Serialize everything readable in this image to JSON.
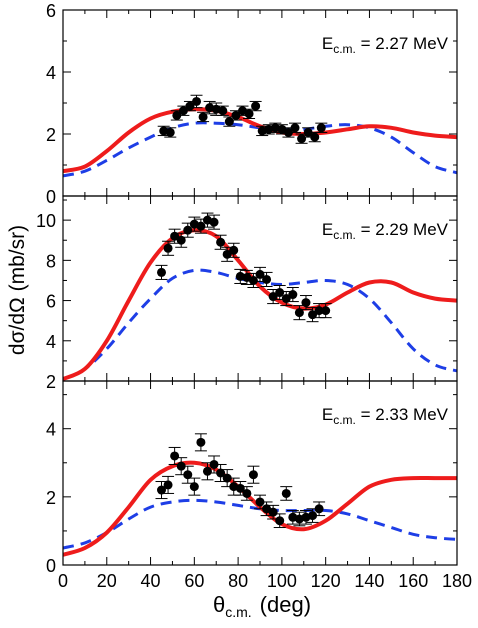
{
  "chart_data": {
    "type": "scatter",
    "x_axis": {
      "label_main": "θ",
      "label_sub": "c.m.",
      "label_unit": "(deg)",
      "range": [
        0,
        180
      ],
      "ticks": [
        "0",
        "20",
        "40",
        "60",
        "80",
        "100",
        "120",
        "140",
        "160",
        "180"
      ]
    },
    "y_axis_label": "dσ/dΩ (mb/sr)",
    "colors": {
      "fit_solid": "#ee1c1c",
      "fit_dashed": "#1e3ee6",
      "data": "#000000"
    },
    "panels": [
      {
        "annotation": {
          "main": "E",
          "sub": "c.m.",
          "rest": " = 2.27 MeV"
        },
        "ylim": [
          0,
          6
        ],
        "yticks": [
          "0",
          "2",
          "4",
          "6"
        ],
        "data": [
          [
            46,
            2.1,
            0.15
          ],
          [
            49,
            2.05,
            0.15
          ],
          [
            52,
            2.6,
            0.15
          ],
          [
            55,
            2.75,
            0.15
          ],
          [
            58,
            2.9,
            0.15
          ],
          [
            61,
            3.05,
            0.2
          ],
          [
            64,
            2.55,
            0.15
          ],
          [
            67,
            2.85,
            0.2
          ],
          [
            70,
            2.8,
            0.2
          ],
          [
            73,
            2.75,
            0.15
          ],
          [
            76,
            2.4,
            0.15
          ],
          [
            79,
            2.6,
            0.15
          ],
          [
            82,
            2.75,
            0.15
          ],
          [
            85,
            2.65,
            0.15
          ],
          [
            88,
            2.9,
            0.15
          ],
          [
            91,
            2.1,
            0.15
          ],
          [
            94,
            2.15,
            0.15
          ],
          [
            97,
            2.2,
            0.15
          ],
          [
            100,
            2.15,
            0.15
          ],
          [
            103,
            2.05,
            0.15
          ],
          [
            106,
            2.2,
            0.15
          ],
          [
            109,
            1.85,
            0.15
          ],
          [
            112,
            2.05,
            0.15
          ],
          [
            115,
            1.9,
            0.15
          ],
          [
            118,
            2.2,
            0.15
          ]
        ],
        "solid": [
          [
            0,
            0.8
          ],
          [
            10,
            0.95
          ],
          [
            20,
            1.45
          ],
          [
            30,
            2.05
          ],
          [
            40,
            2.5
          ],
          [
            50,
            2.72
          ],
          [
            60,
            2.8
          ],
          [
            70,
            2.75
          ],
          [
            80,
            2.55
          ],
          [
            90,
            2.25
          ],
          [
            100,
            2.05
          ],
          [
            110,
            2.0
          ],
          [
            120,
            2.05
          ],
          [
            130,
            2.15
          ],
          [
            140,
            2.25
          ],
          [
            150,
            2.2
          ],
          [
            160,
            2.05
          ],
          [
            170,
            1.95
          ],
          [
            180,
            1.9
          ]
        ],
        "dashed": [
          [
            0,
            0.65
          ],
          [
            10,
            0.8
          ],
          [
            20,
            1.15
          ],
          [
            30,
            1.55
          ],
          [
            40,
            1.9
          ],
          [
            50,
            2.2
          ],
          [
            60,
            2.35
          ],
          [
            70,
            2.35
          ],
          [
            80,
            2.3
          ],
          [
            90,
            2.2
          ],
          [
            100,
            2.15
          ],
          [
            110,
            2.15
          ],
          [
            120,
            2.25
          ],
          [
            130,
            2.3
          ],
          [
            140,
            2.2
          ],
          [
            150,
            1.9
          ],
          [
            160,
            1.4
          ],
          [
            170,
            0.95
          ],
          [
            180,
            0.75
          ]
        ]
      },
      {
        "annotation": {
          "main": "E",
          "sub": "c.m.",
          "rest": " = 2.29 MeV"
        },
        "ylim": [
          2,
          11.2
        ],
        "yticks": [
          "2",
          "4",
          "6",
          "8",
          "10"
        ],
        "data": [
          [
            45,
            7.4,
            0.35
          ],
          [
            48,
            8.6,
            0.35
          ],
          [
            51,
            9.2,
            0.35
          ],
          [
            54,
            9.0,
            0.35
          ],
          [
            57,
            9.5,
            0.35
          ],
          [
            60,
            9.8,
            0.35
          ],
          [
            63,
            9.7,
            0.35
          ],
          [
            66,
            10.0,
            0.35
          ],
          [
            69,
            9.9,
            0.35
          ],
          [
            72,
            8.9,
            0.35
          ],
          [
            75,
            8.3,
            0.35
          ],
          [
            78,
            8.5,
            0.35
          ],
          [
            81,
            7.2,
            0.35
          ],
          [
            84,
            7.15,
            0.35
          ],
          [
            87,
            7.0,
            0.35
          ],
          [
            90,
            7.3,
            0.35
          ],
          [
            93,
            7.05,
            0.35
          ],
          [
            96,
            6.2,
            0.35
          ],
          [
            99,
            6.4,
            0.35
          ],
          [
            102,
            6.1,
            0.35
          ],
          [
            105,
            6.3,
            0.35
          ],
          [
            108,
            5.4,
            0.35
          ],
          [
            111,
            5.9,
            0.35
          ],
          [
            114,
            5.3,
            0.35
          ],
          [
            117,
            5.5,
            0.35
          ],
          [
            120,
            5.5,
            0.35
          ]
        ],
        "solid": [
          [
            0,
            2.1
          ],
          [
            10,
            2.6
          ],
          [
            20,
            4.0
          ],
          [
            30,
            6.0
          ],
          [
            40,
            7.9
          ],
          [
            50,
            9.1
          ],
          [
            60,
            9.5
          ],
          [
            70,
            9.2
          ],
          [
            80,
            8.0
          ],
          [
            90,
            6.7
          ],
          [
            100,
            5.9
          ],
          [
            110,
            5.6
          ],
          [
            120,
            5.8
          ],
          [
            130,
            6.4
          ],
          [
            140,
            6.9
          ],
          [
            150,
            6.9
          ],
          [
            160,
            6.4
          ],
          [
            170,
            6.1
          ],
          [
            180,
            6.0
          ]
        ],
        "dashed": [
          [
            0,
            2.1
          ],
          [
            10,
            2.6
          ],
          [
            20,
            3.6
          ],
          [
            30,
            4.9
          ],
          [
            40,
            6.1
          ],
          [
            50,
            7.1
          ],
          [
            60,
            7.5
          ],
          [
            70,
            7.4
          ],
          [
            80,
            7.1
          ],
          [
            90,
            6.9
          ],
          [
            100,
            6.8
          ],
          [
            110,
            6.9
          ],
          [
            120,
            7.0
          ],
          [
            130,
            6.8
          ],
          [
            140,
            6.1
          ],
          [
            150,
            4.9
          ],
          [
            160,
            3.6
          ],
          [
            170,
            2.8
          ],
          [
            180,
            2.5
          ]
        ]
      },
      {
        "annotation": {
          "main": "E",
          "sub": "c.m.",
          "rest": " = 2.33 MeV"
        },
        "ylim": [
          0,
          5.4
        ],
        "yticks": [
          "0",
          "2",
          "4"
        ],
        "data": [
          [
            45,
            2.2,
            0.25
          ],
          [
            48,
            2.35,
            0.25
          ],
          [
            51,
            3.2,
            0.25
          ],
          [
            54,
            2.9,
            0.25
          ],
          [
            57,
            2.65,
            0.25
          ],
          [
            60,
            2.3,
            0.25
          ],
          [
            63,
            3.6,
            0.25
          ],
          [
            66,
            2.75,
            0.25
          ],
          [
            69,
            2.95,
            0.25
          ],
          [
            72,
            2.7,
            0.25
          ],
          [
            75,
            2.55,
            0.25
          ],
          [
            78,
            2.3,
            0.25
          ],
          [
            81,
            2.25,
            0.2
          ],
          [
            84,
            2.1,
            0.2
          ],
          [
            87,
            2.65,
            0.25
          ],
          [
            90,
            1.85,
            0.2
          ],
          [
            93,
            1.65,
            0.2
          ],
          [
            96,
            1.55,
            0.2
          ],
          [
            99,
            1.3,
            0.2
          ],
          [
            102,
            2.1,
            0.2
          ],
          [
            105,
            1.4,
            0.2
          ],
          [
            108,
            1.35,
            0.2
          ],
          [
            111,
            1.4,
            0.2
          ],
          [
            114,
            1.45,
            0.2
          ],
          [
            117,
            1.65,
            0.2
          ]
        ],
        "solid": [
          [
            0,
            0.3
          ],
          [
            10,
            0.5
          ],
          [
            20,
            0.95
          ],
          [
            30,
            1.7
          ],
          [
            40,
            2.5
          ],
          [
            50,
            2.9
          ],
          [
            60,
            3.0
          ],
          [
            70,
            2.8
          ],
          [
            80,
            2.3
          ],
          [
            90,
            1.7
          ],
          [
            100,
            1.2
          ],
          [
            110,
            1.05
          ],
          [
            120,
            1.3
          ],
          [
            130,
            1.8
          ],
          [
            140,
            2.3
          ],
          [
            150,
            2.5
          ],
          [
            160,
            2.55
          ],
          [
            170,
            2.55
          ],
          [
            180,
            2.55
          ]
        ],
        "dashed": [
          [
            0,
            0.5
          ],
          [
            10,
            0.65
          ],
          [
            20,
            0.95
          ],
          [
            30,
            1.35
          ],
          [
            40,
            1.7
          ],
          [
            50,
            1.85
          ],
          [
            60,
            1.9
          ],
          [
            70,
            1.85
          ],
          [
            80,
            1.75
          ],
          [
            90,
            1.65
          ],
          [
            100,
            1.6
          ],
          [
            110,
            1.6
          ],
          [
            120,
            1.6
          ],
          [
            130,
            1.5
          ],
          [
            140,
            1.3
          ],
          [
            150,
            1.1
          ],
          [
            160,
            0.9
          ],
          [
            170,
            0.8
          ],
          [
            180,
            0.75
          ]
        ]
      }
    ]
  }
}
